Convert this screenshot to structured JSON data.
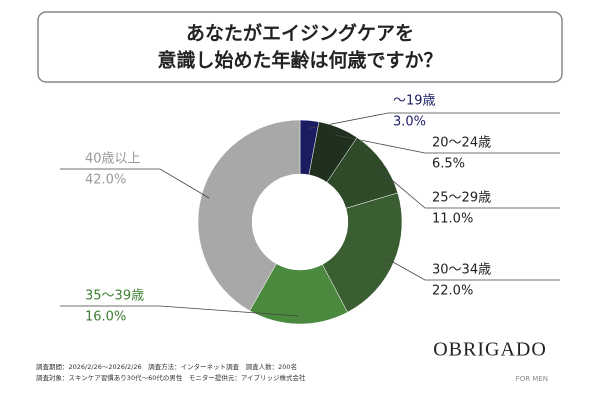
{
  "chart_data": {
    "type": "donut",
    "title": [
      "あなたがエイジングケアを",
      "意識し始めた年齢は何歳ですか？"
    ],
    "categories": [
      "〜19歳",
      "20〜24歳",
      "25〜29歳",
      "30〜34歳",
      "35〜39歳",
      "40歳以上"
    ],
    "values": [
      3.0,
      6.5,
      11.0,
      22.0,
      16.0,
      42.0
    ],
    "value_labels": [
      "3.0%",
      "6.5%",
      "11.0%",
      "22.0%",
      "16.0%",
      "42.0%"
    ],
    "colors": [
      "#1b1d63",
      "#1f301f",
      "#2e4a29",
      "#3a5e32",
      "#4b8a3e",
      "#a8a8a8"
    ],
    "label_colors": [
      "#1b1d63",
      "#222222",
      "#222222",
      "#222222",
      "#3f7f33",
      "#9a9a9a"
    ],
    "footer": [
      "調査期間：2026/2/26〜2026/2/26　調査方法：インターネット調査　調査人数：200名",
      "調査対象：スキンケア習慣あり30代〜60代の男性　モニター提供元：アイブリッジ株式会社"
    ],
    "logo": "OBRIGADO",
    "logo_sub": "FOR MEN"
  }
}
